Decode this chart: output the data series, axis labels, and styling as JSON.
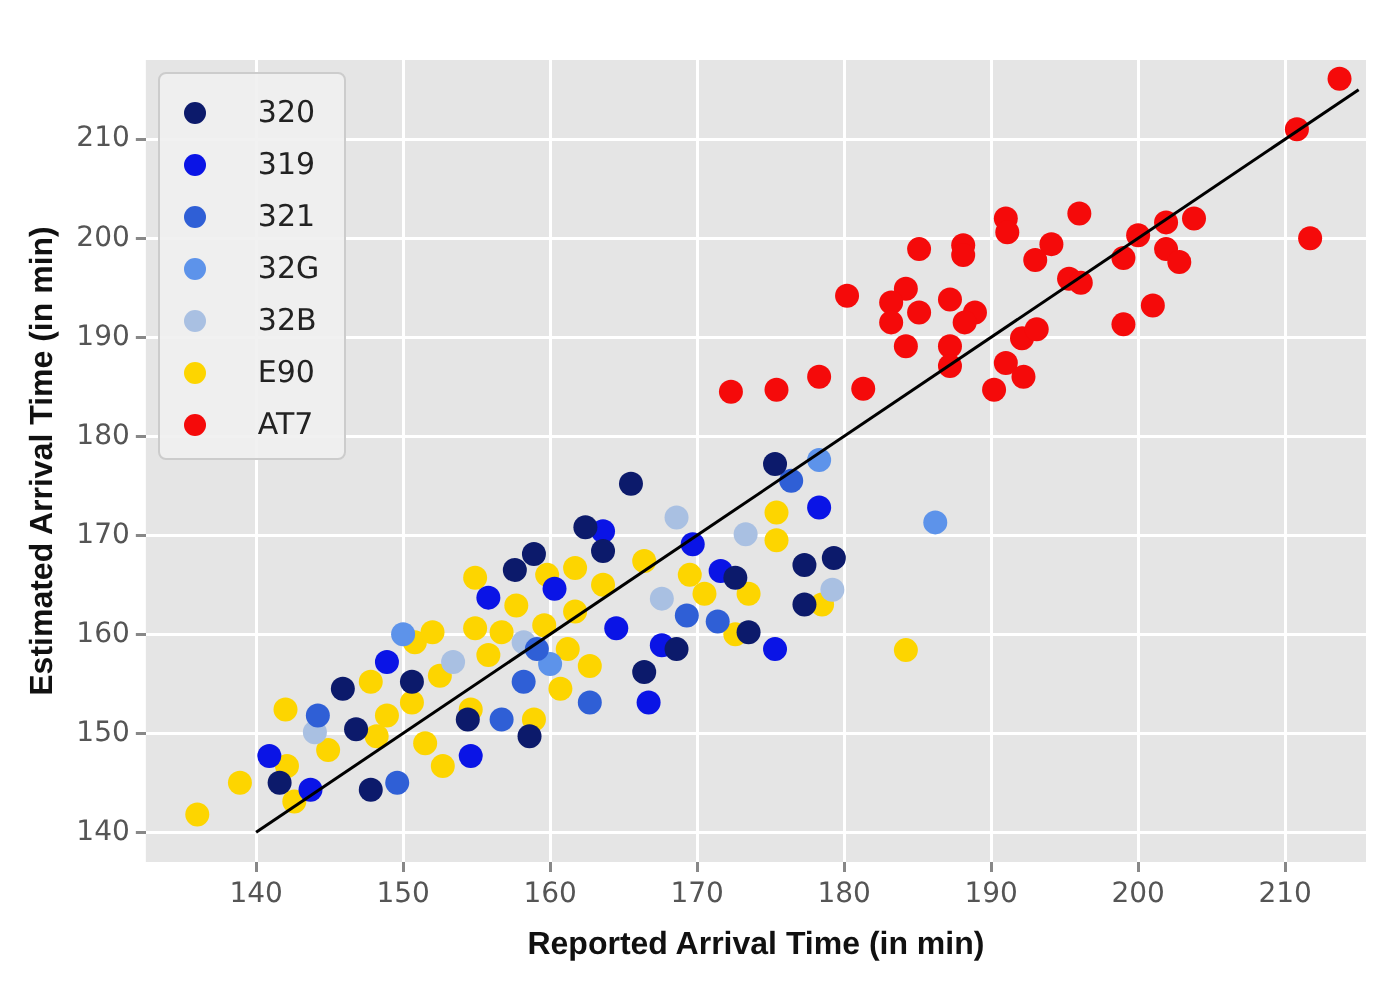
{
  "chart_data": {
    "type": "scatter",
    "xlabel": "Reported Arrival Time (in min)",
    "ylabel": "Estimated Arrival Time (in min)",
    "xlim": [
      132.5,
      215.5
    ],
    "ylim": [
      137,
      218
    ],
    "xticks": [
      140,
      150,
      160,
      170,
      180,
      190,
      200,
      210
    ],
    "yticks": [
      140,
      150,
      160,
      170,
      180,
      190,
      200,
      210
    ],
    "grid": true,
    "legend": "top left",
    "marker": "circle",
    "series": [
      {
        "name": "320",
        "color": "#0c1a6b",
        "x": [
          165.5,
          175.3,
          177.3,
          179.3,
          177.3,
          173.5,
          168.6,
          166.4,
          162.4,
          163.6,
          158.9,
          172.6,
          157.6,
          141.6,
          147.8,
          145.9,
          150.6,
          154.4,
          158.6,
          146.8
        ],
        "values": [
          175.2,
          177.2,
          167.0,
          167.7,
          163.0,
          160.2,
          158.5,
          156.2,
          170.8,
          168.4,
          168.1,
          165.7,
          166.5,
          145.0,
          144.3,
          154.5,
          155.2,
          151.4,
          149.7,
          150.4
        ]
      },
      {
        "name": "319",
        "color": "#0a14e6",
        "x": [
          163.6,
          178.3,
          175.3,
          164.5,
          167.6,
          171.6,
          166.7,
          169.7,
          160.3,
          140.9,
          148.9,
          154.6,
          155.8,
          143.7
        ],
        "values": [
          170.4,
          172.8,
          158.5,
          160.6,
          158.9,
          166.4,
          153.1,
          169.1,
          164.6,
          147.7,
          157.2,
          147.7,
          163.7,
          144.3
        ]
      },
      {
        "name": "321",
        "color": "#2f5fd6",
        "x": [
          162.7,
          169.3,
          171.4,
          176.4,
          159.1,
          149.6,
          158.2,
          144.2,
          156.7
        ],
        "values": [
          153.1,
          161.9,
          161.3,
          175.5,
          158.5,
          145.0,
          155.2,
          151.8,
          151.4
        ]
      },
      {
        "name": "32G",
        "color": "#5d93ea",
        "x": [
          186.2,
          178.3,
          150.0,
          160.0
        ],
        "values": [
          171.3,
          177.6,
          160.0,
          157.0
        ]
      },
      {
        "name": "32B",
        "color": "#a9c0e2",
        "x": [
          168.6,
          173.3,
          179.2,
          167.6,
          144.0,
          153.4,
          158.2
        ],
        "values": [
          171.8,
          170.1,
          164.5,
          163.6,
          150.1,
          157.2,
          159.2
        ]
      },
      {
        "name": "E90",
        "color": "#fdd500",
        "x": [
          136.0,
          138.9,
          142.0,
          142.1,
          142.6,
          144.9,
          147.8,
          148.2,
          148.9,
          150.6,
          150.8,
          152.0,
          152.5,
          151.5,
          152.7,
          154.6,
          154.9,
          154.9,
          155.8,
          156.7,
          157.7,
          159.6,
          159.8,
          158.9,
          175.4,
          175.4,
          178.5,
          173.5,
          172.6,
          170.5,
          169.5,
          166.4,
          163.6,
          161.7,
          161.7,
          161.2,
          162.7,
          160.7,
          184.2
        ],
        "values": [
          141.8,
          145.0,
          152.4,
          146.7,
          143.1,
          148.3,
          155.2,
          149.7,
          151.8,
          153.1,
          159.2,
          160.2,
          155.8,
          149.0,
          146.7,
          152.4,
          160.6,
          165.7,
          157.9,
          160.2,
          162.9,
          160.9,
          166.0,
          151.4,
          172.3,
          169.5,
          163.0,
          164.1,
          160.0,
          164.1,
          166.0,
          167.4,
          165.0,
          166.7,
          162.3,
          158.5,
          156.8,
          154.5,
          158.4
        ]
      },
      {
        "name": "AT7",
        "color": "#f50a0a",
        "x": [
          213.7,
          210.8,
          211.7,
          196.0,
          203.8,
          201.9,
          200.0,
          201.9,
          202.8,
          199.0,
          201.0,
          199.0,
          191.0,
          191.1,
          188.1,
          188.1,
          185.1,
          194.1,
          193.0,
          195.3,
          196.1,
          180.2,
          184.2,
          183.2,
          185.1,
          187.2,
          188.9,
          188.2,
          183.2,
          184.2,
          187.2,
          187.2,
          191.0,
          192.2,
          192.1,
          193.1,
          190.2,
          172.3,
          175.4,
          178.3,
          181.3
        ],
        "values": [
          216.1,
          211.0,
          200.0,
          202.5,
          202.0,
          201.6,
          200.3,
          198.9,
          197.6,
          198.0,
          193.2,
          191.3,
          202.0,
          200.6,
          199.3,
          198.3,
          198.9,
          199.4,
          197.8,
          195.9,
          195.5,
          194.2,
          194.9,
          193.5,
          192.5,
          193.8,
          192.5,
          191.5,
          191.5,
          189.1,
          189.1,
          187.1,
          187.4,
          186.0,
          189.9,
          190.8,
          184.7,
          184.5,
          184.7,
          186.0,
          184.8
        ]
      },
      {
        "type": "line",
        "color": "#000000",
        "x": [
          140,
          215
        ],
        "values": [
          140,
          215
        ],
        "marker": "none",
        "line_style": "solid"
      }
    ]
  }
}
